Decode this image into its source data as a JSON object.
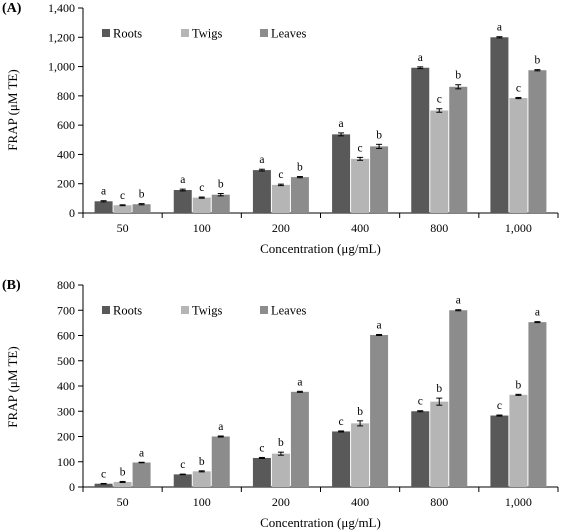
{
  "chart_data": [
    {
      "panel_label": "(A)",
      "type": "bar",
      "categories": [
        "50",
        "100",
        "200",
        "400",
        "800",
        "1,000"
      ],
      "series": [
        {
          "name": "Roots",
          "color": "#595959",
          "values": [
            80,
            157,
            293,
            537,
            992,
            1200
          ],
          "errors": [
            4,
            6,
            6,
            10,
            6,
            4
          ],
          "labels": [
            "a",
            "a",
            "a",
            "a",
            "a",
            "a"
          ]
        },
        {
          "name": "Twigs",
          "color": "#b5b5b5",
          "values": [
            53,
            105,
            192,
            370,
            700,
            785
          ],
          "errors": [
            3,
            4,
            5,
            10,
            12,
            4
          ],
          "labels": [
            "c",
            "c",
            "c",
            "c",
            "c",
            "c"
          ]
        },
        {
          "name": "Leaves",
          "color": "#8c8c8c",
          "values": [
            60,
            125,
            245,
            455,
            862,
            975
          ],
          "errors": [
            4,
            8,
            4,
            14,
            14,
            4
          ],
          "labels": [
            "b",
            "b",
            "b",
            "b",
            "b",
            "b"
          ]
        }
      ],
      "ylim": [
        0,
        1400
      ],
      "yticks": [
        0,
        200,
        400,
        600,
        800,
        1000,
        1200,
        1400
      ],
      "ytick_labels": [
        "0",
        "200",
        "400",
        "600",
        "800",
        "1,000",
        "1,200",
        "1,400"
      ],
      "ylabel": "FRAP (μM TE)",
      "xlabel": "Concentration (μg/mL)",
      "legend_position": "top-left",
      "grid": false
    },
    {
      "panel_label": "(B)",
      "type": "bar",
      "categories": [
        "50",
        "100",
        "200",
        "400",
        "800",
        "1,000"
      ],
      "series": [
        {
          "name": "Roots",
          "color": "#595959",
          "values": [
            13,
            50,
            115,
            220,
            300,
            283
          ],
          "errors": [
            1,
            1,
            2,
            2,
            2,
            2
          ],
          "labels": [
            "c",
            "c",
            "c",
            "c",
            "c",
            "c"
          ]
        },
        {
          "name": "Twigs",
          "color": "#b5b5b5",
          "values": [
            20,
            62,
            132,
            252,
            338,
            365
          ],
          "errors": [
            2,
            2,
            6,
            10,
            14,
            2
          ],
          "labels": [
            "b",
            "b",
            "b",
            "b",
            "b",
            "b"
          ]
        },
        {
          "name": "Leaves",
          "color": "#8c8c8c",
          "values": [
            97,
            200,
            377,
            602,
            700,
            653
          ],
          "errors": [
            1,
            2,
            2,
            2,
            2,
            2
          ],
          "labels": [
            "a",
            "a",
            "a",
            "a",
            "a",
            "a"
          ]
        }
      ],
      "ylim": [
        0,
        800
      ],
      "yticks": [
        0,
        100,
        200,
        300,
        400,
        500,
        600,
        700,
        800
      ],
      "ytick_labels": [
        "0",
        "100",
        "200",
        "300",
        "400",
        "500",
        "600",
        "700",
        "800"
      ],
      "ylabel": "FRAP (μM TE)",
      "xlabel": "Concentration (μg/mL)",
      "legend_position": "top-left",
      "grid": false
    }
  ]
}
